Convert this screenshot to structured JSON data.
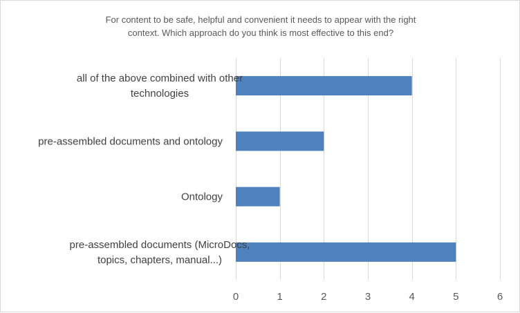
{
  "chart_data": {
    "type": "bar",
    "orientation": "horizontal",
    "title_lines": [
      "For content to be safe, helpful and convenient it needs to appear with the right",
      "context. Which approach do you think is most effective to this end?"
    ],
    "categories": [
      [
        "all of the above combined with other",
        "technologies"
      ],
      [
        "pre-assembled documents and ontology"
      ],
      [
        "Ontology"
      ],
      [
        "pre-assembled documents (MicroDocs,",
        "topics, chapters, manual...)"
      ]
    ],
    "values": [
      4,
      2,
      1,
      5
    ],
    "xlim": [
      0,
      6
    ],
    "x_ticks": [
      0,
      1,
      2,
      3,
      4,
      5,
      6
    ],
    "grid": true,
    "legend": "none",
    "bar_color": "#4f81bd"
  }
}
